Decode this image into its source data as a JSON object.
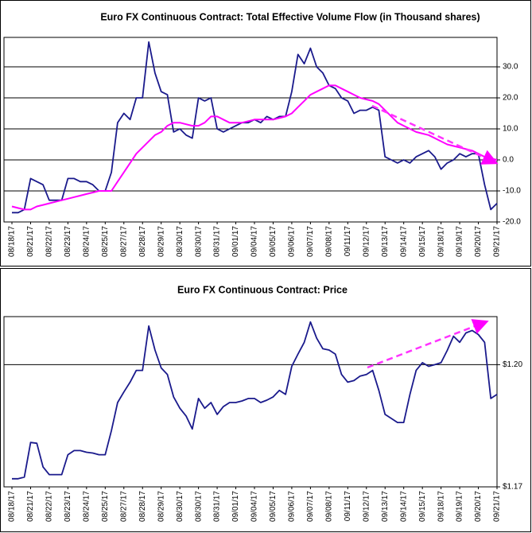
{
  "chart_data": [
    {
      "type": "line",
      "title": "Euro FX Continuous Contract: Total Effective Volume Flow (in Thousand shares)",
      "categories": [
        "08/18/17",
        null,
        null,
        "08/21/17",
        null,
        null,
        "08/22/17",
        null,
        null,
        "08/23/17",
        null,
        null,
        "08/24/17",
        null,
        null,
        "08/25/17",
        null,
        null,
        "08/27/17",
        null,
        null,
        "08/28/17",
        null,
        null,
        "08/29/17",
        null,
        null,
        "08/30/17",
        null,
        null,
        "08/30/17",
        null,
        null,
        "08/31/17",
        null,
        null,
        "09/01/17",
        null,
        null,
        "09/04/17",
        null,
        null,
        "09/05/17",
        null,
        null,
        "09/06/17",
        null,
        null,
        "09/07/17",
        null,
        null,
        "09/08/17",
        null,
        null,
        "09/11/17",
        null,
        null,
        "09/12/17",
        null,
        null,
        "09/13/17",
        null,
        null,
        "09/14/17",
        null,
        null,
        "09/15/17",
        null,
        null,
        "09/18/17",
        null,
        null,
        "09/19/17",
        null,
        null,
        "09/20/17",
        null,
        null,
        "09/21/17"
      ],
      "series": [
        {
          "color": "#1a1a8c",
          "values": [
            -17,
            -17,
            -16,
            -6,
            -7,
            -8,
            -13,
            -13,
            -13,
            -6,
            -6,
            -7,
            -7,
            -8,
            -10,
            -10,
            -4,
            12,
            15,
            13,
            20,
            20,
            38,
            28,
            22,
            21,
            9,
            10,
            8,
            7,
            20,
            19,
            20,
            10,
            9,
            10,
            11,
            12,
            12,
            13,
            12,
            14,
            13,
            14,
            14,
            22,
            34,
            31,
            36,
            30,
            28,
            24,
            23,
            20,
            19,
            15,
            16,
            16,
            17,
            16,
            1,
            0,
            -1,
            0,
            -1,
            1,
            2,
            3,
            1,
            -3,
            -1,
            0,
            2,
            1,
            2,
            2,
            -8,
            -16,
            -14
          ]
        },
        {
          "color": "#ff00ff",
          "values": [
            -15,
            -15.5,
            -16,
            -16,
            -15,
            -14.5,
            -14,
            -13.5,
            -13,
            -12.5,
            -12,
            -11.5,
            -11,
            -10.5,
            -10,
            -10,
            -10,
            -7,
            -4,
            -1,
            2,
            4,
            6,
            8,
            9,
            11,
            12,
            12,
            11.5,
            11,
            11,
            12,
            14,
            14,
            13,
            12,
            12,
            12,
            12.5,
            13,
            13,
            13,
            13,
            13.5,
            14,
            15,
            17,
            19,
            21,
            22,
            23,
            24,
            24,
            23,
            22,
            21,
            20,
            19.5,
            19,
            18,
            16,
            14,
            12,
            11,
            10,
            9,
            8.5,
            8,
            7,
            6,
            5,
            4.5,
            4,
            3.5,
            3,
            2,
            1,
            0.5,
            0
          ]
        }
      ],
      "ylim": [
        -20,
        39.5
      ],
      "yticks": [
        {
          "value": 30,
          "label": "30.0"
        },
        {
          "value": 20,
          "label": "20.0"
        },
        {
          "value": 10,
          "label": "10.0"
        },
        {
          "value": 0,
          "label": "0.0"
        },
        {
          "value": -10,
          "label": "-10.0"
        },
        {
          "value": -20,
          "label": "-20.0"
        }
      ],
      "grid": true,
      "yaxis_position": "right"
    },
    {
      "type": "line",
      "title": "Euro FX Continuous Contract: Price",
      "categories": [
        "08/18/17",
        null,
        null,
        "08/21/17",
        null,
        null,
        "08/22/17",
        null,
        null,
        "08/23/17",
        null,
        null,
        "08/24/17",
        null,
        null,
        "08/25/17",
        null,
        null,
        "08/27/17",
        null,
        null,
        "08/28/17",
        null,
        null,
        "08/29/17",
        null,
        null,
        "08/30/17",
        null,
        null,
        "08/30/17",
        null,
        null,
        "08/31/17",
        null,
        null,
        "09/01/17",
        null,
        null,
        "09/04/17",
        null,
        null,
        "09/05/17",
        null,
        null,
        "09/06/17",
        null,
        null,
        "09/07/17",
        null,
        null,
        "09/08/17",
        null,
        null,
        "09/11/17",
        null,
        null,
        "09/12/17",
        null,
        null,
        "09/13/17",
        null,
        null,
        "09/14/17",
        null,
        null,
        "09/15/17",
        null,
        null,
        "09/18/17",
        null,
        null,
        "09/19/17",
        null,
        null,
        "09/20/17",
        null,
        null,
        "09/21/17"
      ],
      "series": [
        {
          "color": "#1a1a8c",
          "values": [
            1.172,
            1.172,
            1.1724,
            1.1809,
            1.1807,
            1.1749,
            1.173,
            1.173,
            1.173,
            1.1779,
            1.1789,
            1.1789,
            1.1785,
            1.1783,
            1.1779,
            1.1779,
            1.1838,
            1.1907,
            1.1933,
            1.1957,
            1.1986,
            1.1986,
            1.2095,
            1.2036,
            1.1992,
            1.1976,
            1.1921,
            1.1893,
            1.1874,
            1.1842,
            1.1917,
            1.1893,
            1.1907,
            1.1878,
            1.1897,
            1.1907,
            1.1907,
            1.1911,
            1.1917,
            1.1917,
            1.1907,
            1.1913,
            1.1921,
            1.1937,
            1.1927,
            1.1996,
            1.2026,
            1.2055,
            1.2105,
            1.2065,
            1.2039,
            1.2036,
            1.2026,
            1.1976,
            1.1957,
            1.1961,
            1.1972,
            1.1976,
            1.1986,
            1.1937,
            1.1878,
            1.1868,
            1.1858,
            1.1858,
            1.1927,
            1.1986,
            1.2005,
            1.1996,
            1.2,
            1.2005,
            1.2035,
            1.207,
            1.2055,
            1.2078,
            1.2084,
            1.2074,
            1.2055,
            1.1917,
            1.1927
          ]
        }
      ],
      "ylim": [
        1.17,
        1.2118
      ],
      "yticks": [
        {
          "value": 1.2,
          "label": "$1.20"
        },
        {
          "value": 1.17,
          "label": "$1.17"
        }
      ],
      "grid": true,
      "yaxis_position": "right"
    }
  ]
}
